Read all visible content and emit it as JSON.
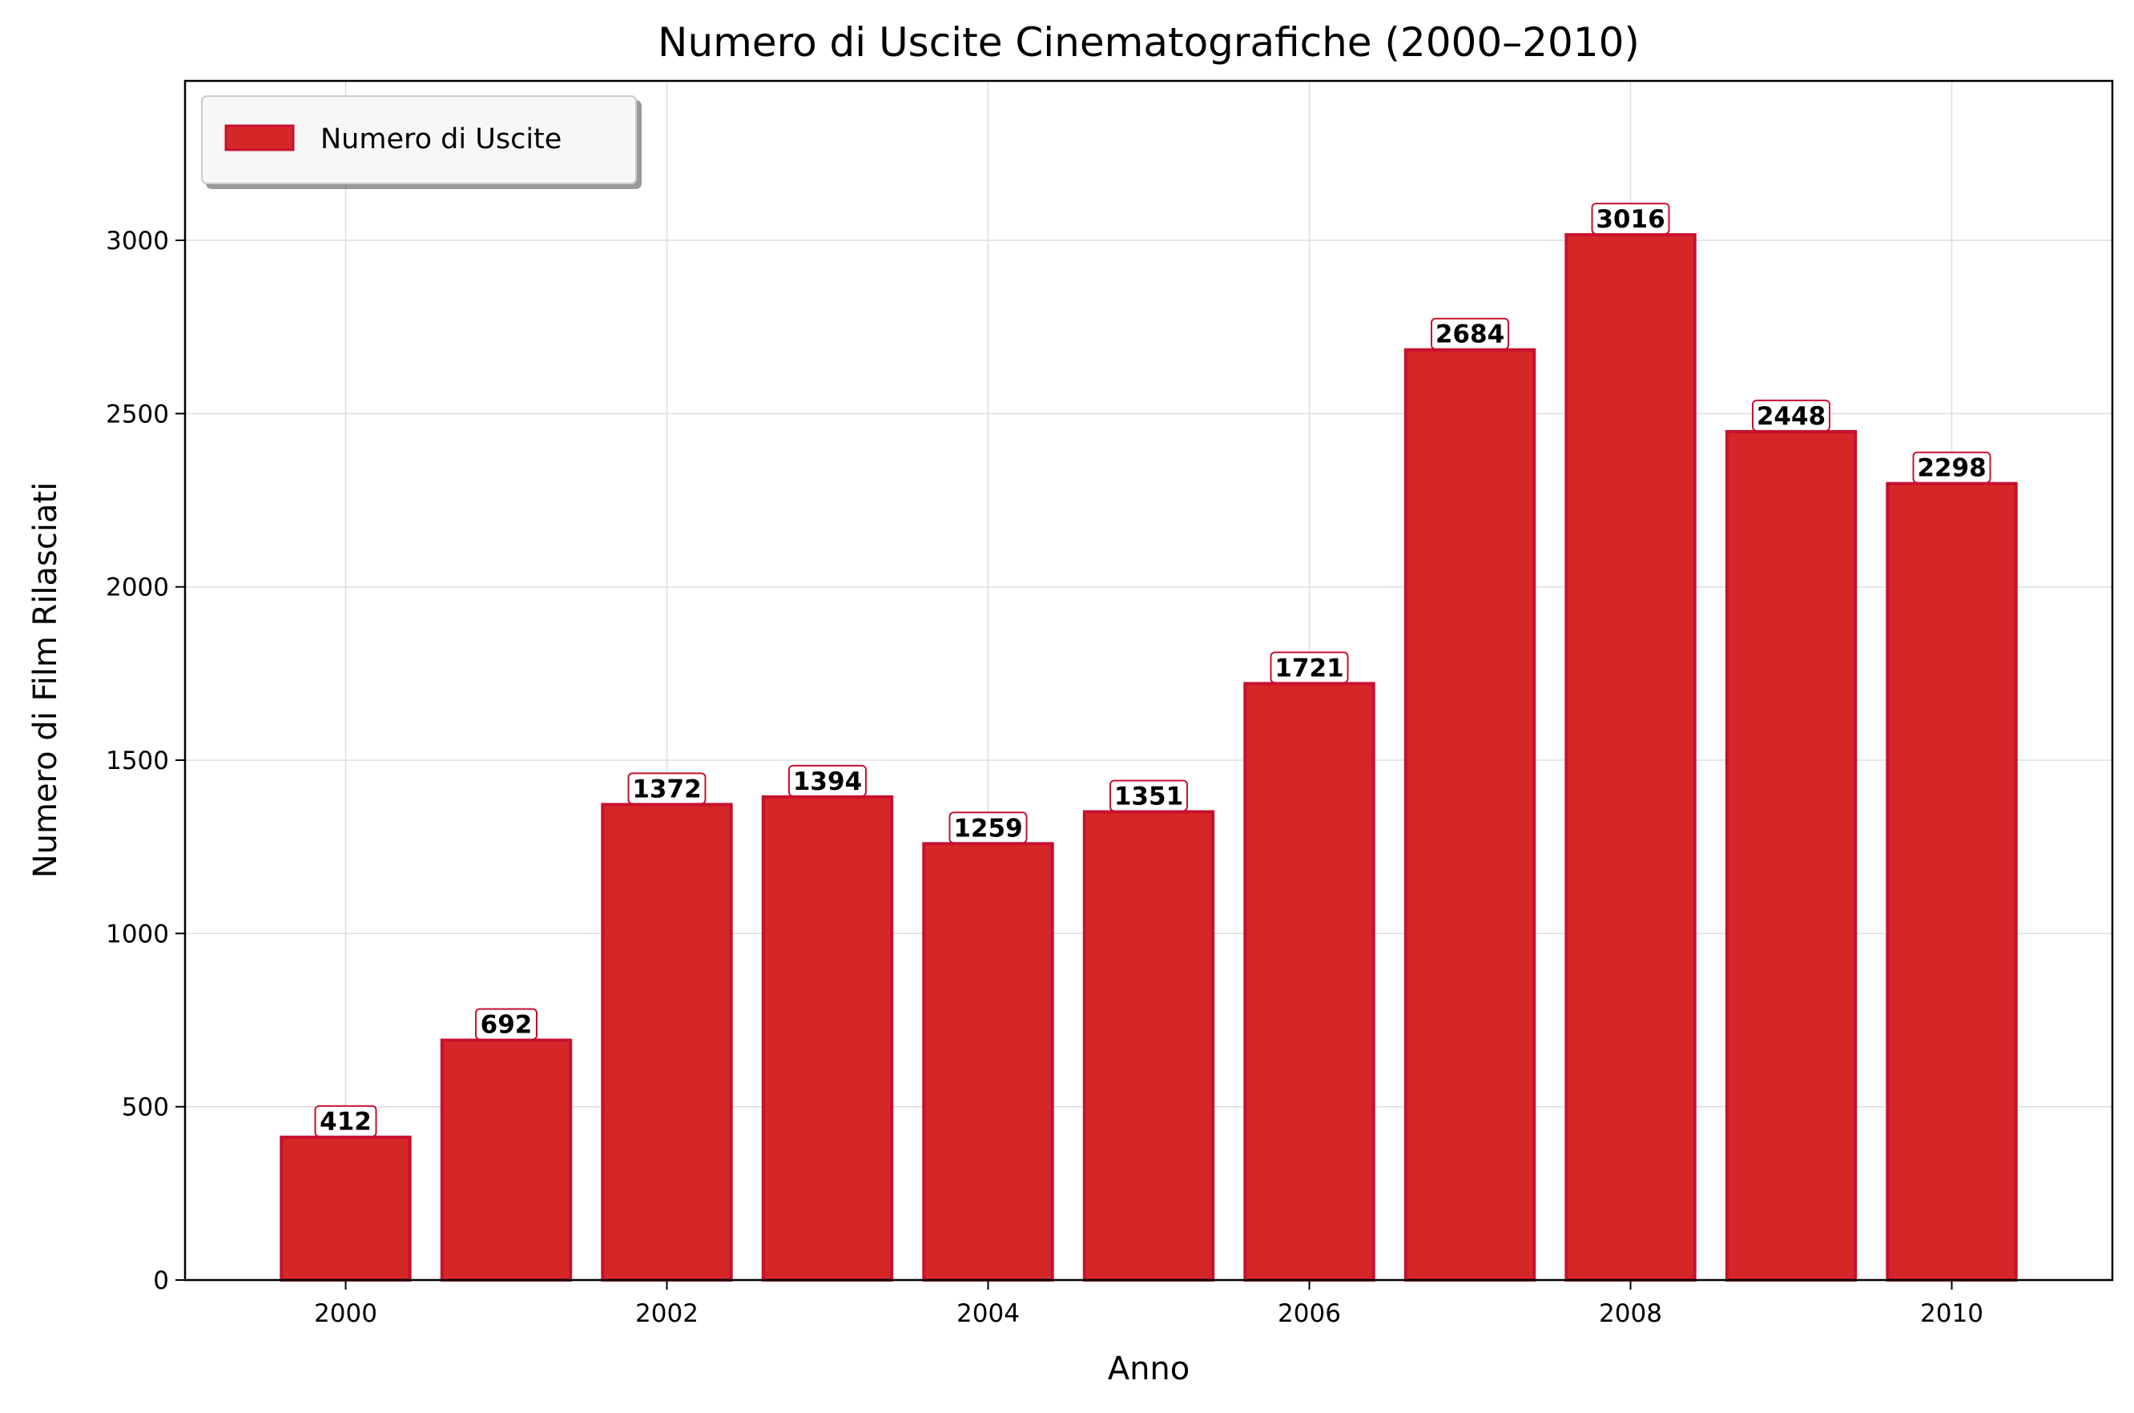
{
  "chart_data": {
    "type": "bar",
    "title": "Numero di Uscite Cinematografiche (2000–2010)",
    "xlabel": "Anno",
    "ylabel": "Numero di Film Rilasciati",
    "categories": [
      2000,
      2001,
      2002,
      2003,
      2004,
      2005,
      2006,
      2007,
      2008,
      2009,
      2010
    ],
    "series": [
      {
        "name": "Numero di Uscite",
        "values": [
          412,
          692,
          1372,
          1394,
          1259,
          1351,
          1721,
          2684,
          3016,
          2448,
          2298
        ]
      }
    ],
    "value_labels": [
      "412",
      "692",
      "1372",
      "1394",
      "1259",
      "1351",
      "1721",
      "2684",
      "3016",
      "2448",
      "2298"
    ],
    "xlim": [
      1999,
      2011
    ],
    "ylim": [
      0,
      3460
    ],
    "x_ticks": [
      2000,
      2002,
      2004,
      2006,
      2008,
      2010
    ],
    "x_tick_labels": [
      "2000",
      "2002",
      "2004",
      "2006",
      "2008",
      "2010"
    ],
    "y_ticks": [
      0,
      500,
      1000,
      1500,
      2000,
      2500,
      3000
    ],
    "y_tick_labels": [
      "0",
      "500",
      "1000",
      "1500",
      "2000",
      "2500",
      "3000"
    ],
    "grid": true,
    "legend_position": "top-left",
    "colors": {
      "bar_fill": "#d62728",
      "bar_edge": "#c8102e",
      "grid": "#dddddd"
    }
  }
}
